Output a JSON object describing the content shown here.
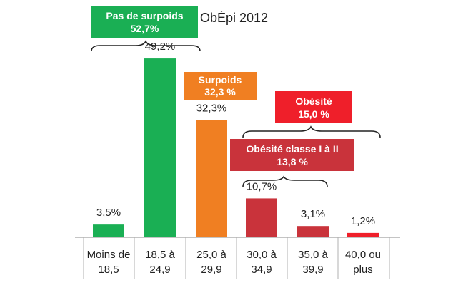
{
  "chart_data": {
    "type": "bar",
    "title": "ObÉpi 2012",
    "categories": [
      [
        "Moins de",
        "18,5"
      ],
      [
        "18,5 à",
        "24,9"
      ],
      [
        "25,0 à",
        "29,9"
      ],
      [
        "30,0 à",
        "34,9"
      ],
      [
        "35,0 à",
        "39,9"
      ],
      [
        "40,0 ou",
        "plus"
      ]
    ],
    "values": [
      3.5,
      49.2,
      32.3,
      10.7,
      3.1,
      1.2
    ],
    "value_labels": [
      "3,5%",
      "49,2%",
      "32,3%",
      "10,7%",
      "3,1%",
      "1,2%"
    ],
    "bar_colors": [
      "#1aaf54",
      "#1aaf54",
      "#f07f22",
      "#c9333b",
      "#c9333b",
      "#ef1f2a"
    ],
    "ylim": [
      0,
      50
    ],
    "grid": false,
    "annotations": [
      {
        "id": "pas-de-surpoids",
        "line1": "Pas de surpoids",
        "line2": "52,7%",
        "color": "#1aaf54"
      },
      {
        "id": "surpoids",
        "line1": "Surpoids",
        "line2": "32,3 %",
        "color": "#f07f22"
      },
      {
        "id": "obesite",
        "line1": "Obésité",
        "line2": "15,0 %",
        "color": "#ef1f2a"
      },
      {
        "id": "obesite-classe",
        "line1": "Obésité classe I à II",
        "line2": "13,8 %",
        "color": "#c9333b"
      }
    ]
  }
}
